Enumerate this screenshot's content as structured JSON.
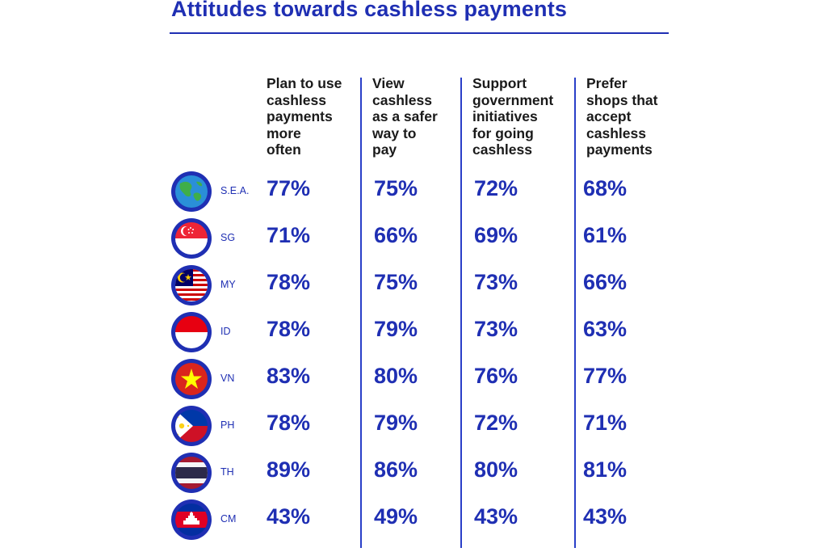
{
  "title": "Attitudes towards cashless payments",
  "chart_data": {
    "type": "table",
    "columns": [
      "Plan to use\ncashless\npayments\nmore\noften",
      "View\ncashless\nas a safer\nway to\npay",
      "Support\ngovernment\ninitiatives\nfor going\ncashless",
      "Prefer\nshops that\naccept\ncashless\npayments"
    ],
    "rows": [
      {
        "code": "S.E.A.",
        "flag": "globe-icon",
        "values": [
          "77%",
          "75%",
          "72%",
          "68%"
        ]
      },
      {
        "code": "SG",
        "flag": "singapore-flag-icon",
        "values": [
          "71%",
          "66%",
          "69%",
          "61%"
        ]
      },
      {
        "code": "MY",
        "flag": "malaysia-flag-icon",
        "values": [
          "78%",
          "75%",
          "73%",
          "66%"
        ]
      },
      {
        "code": "ID",
        "flag": "indonesia-flag-icon",
        "values": [
          "78%",
          "79%",
          "73%",
          "63%"
        ]
      },
      {
        "code": "VN",
        "flag": "vietnam-flag-icon",
        "values": [
          "83%",
          "80%",
          "76%",
          "77%"
        ]
      },
      {
        "code": "PH",
        "flag": "philippines-flag-icon",
        "values": [
          "78%",
          "79%",
          "72%",
          "71%"
        ]
      },
      {
        "code": "TH",
        "flag": "thailand-flag-icon",
        "values": [
          "89%",
          "86%",
          "80%",
          "81%"
        ]
      },
      {
        "code": "CM",
        "flag": "cambodia-flag-icon",
        "values": [
          "43%",
          "49%",
          "43%",
          "43%"
        ]
      }
    ]
  },
  "colors": {
    "accent": "#1f2fb3",
    "text": "#1a1a1a"
  }
}
